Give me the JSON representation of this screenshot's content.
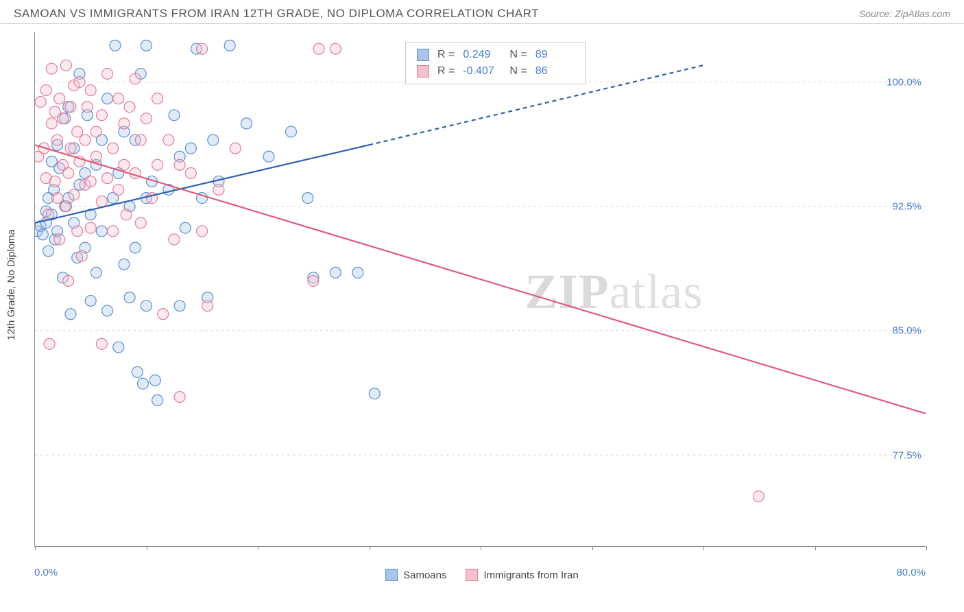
{
  "header": {
    "title": "SAMOAN VS IMMIGRANTS FROM IRAN 12TH GRADE, NO DIPLOMA CORRELATION CHART",
    "source": "Source: ZipAtlas.com"
  },
  "chart": {
    "type": "scatter",
    "ylabel": "12th Grade, No Diploma",
    "xlim": [
      0,
      80
    ],
    "ylim": [
      72,
      103
    ],
    "background_color": "#ffffff",
    "grid_color": "#d8d8d8",
    "grid_dash": "4,4",
    "xticks": [
      0,
      10,
      20,
      30,
      40,
      50,
      60,
      70,
      80
    ],
    "xtick_labels": {
      "left": "0.0%",
      "right": "80.0%"
    },
    "yticks": [
      77.5,
      85.0,
      92.5,
      100.0
    ],
    "ytick_labels": [
      "77.5%",
      "85.0%",
      "92.5%",
      "100.0%"
    ],
    "axis_color": "#888888",
    "tick_label_color": "#4a7ec9",
    "marker_radius": 8,
    "marker_stroke_width": 1.2,
    "marker_fill_opacity": 0.35,
    "series": [
      {
        "name": "Samoans",
        "color_fill": "#a9c6ea",
        "color_stroke": "#5b8fd1",
        "line_color": "#2f5fb0",
        "line_width": 2.2,
        "regression": {
          "x1": 0,
          "y1": 91.5,
          "x2": 30,
          "y2": 96.2,
          "x2_dashed": 60,
          "y2_dashed": 101.0
        },
        "stats": {
          "R": "0.249",
          "N": "89"
        },
        "points": [
          [
            0.2,
            91.0
          ],
          [
            0.5,
            91.3
          ],
          [
            0.7,
            90.8
          ],
          [
            1.0,
            91.5
          ],
          [
            1.0,
            92.2
          ],
          [
            1.2,
            93.0
          ],
          [
            1.2,
            89.8
          ],
          [
            1.5,
            92.0
          ],
          [
            1.5,
            95.2
          ],
          [
            1.7,
            93.5
          ],
          [
            1.8,
            90.5
          ],
          [
            2.0,
            96.2
          ],
          [
            2.0,
            91.0
          ],
          [
            2.2,
            94.8
          ],
          [
            2.5,
            88.2
          ],
          [
            2.7,
            92.5
          ],
          [
            2.7,
            97.8
          ],
          [
            3.0,
            93.0
          ],
          [
            3.0,
            98.5
          ],
          [
            3.2,
            86.0
          ],
          [
            3.5,
            91.5
          ],
          [
            3.5,
            96.0
          ],
          [
            3.8,
            89.4
          ],
          [
            4.0,
            93.8
          ],
          [
            4.0,
            100.5
          ],
          [
            4.5,
            94.5
          ],
          [
            4.5,
            90.0
          ],
          [
            4.7,
            98.0
          ],
          [
            5.0,
            92.0
          ],
          [
            5.0,
            86.8
          ],
          [
            5.5,
            95.0
          ],
          [
            5.5,
            88.5
          ],
          [
            6.0,
            96.5
          ],
          [
            6.0,
            91.0
          ],
          [
            6.5,
            99.0
          ],
          [
            6.5,
            86.2
          ],
          [
            7.0,
            93.0
          ],
          [
            7.2,
            102.2
          ],
          [
            7.5,
            94.5
          ],
          [
            7.5,
            84.0
          ],
          [
            8.0,
            97.0
          ],
          [
            8.0,
            89.0
          ],
          [
            8.5,
            92.5
          ],
          [
            8.5,
            87.0
          ],
          [
            9.0,
            90.0
          ],
          [
            9.0,
            96.5
          ],
          [
            9.2,
            82.5
          ],
          [
            9.5,
            100.5
          ],
          [
            9.7,
            81.8
          ],
          [
            10.0,
            93.0
          ],
          [
            10.0,
            86.5
          ],
          [
            10.0,
            102.2
          ],
          [
            10.5,
            94.0
          ],
          [
            10.8,
            82.0
          ],
          [
            11.0,
            80.8
          ],
          [
            12.0,
            93.5
          ],
          [
            12.5,
            98.0
          ],
          [
            13.0,
            95.5
          ],
          [
            13.0,
            86.5
          ],
          [
            13.5,
            91.2
          ],
          [
            14.0,
            96.0
          ],
          [
            14.5,
            102.0
          ],
          [
            15.0,
            93.0
          ],
          [
            15.5,
            87.0
          ],
          [
            16.0,
            96.5
          ],
          [
            16.5,
            94.0
          ],
          [
            17.5,
            102.2
          ],
          [
            19.0,
            97.5
          ],
          [
            21.0,
            95.5
          ],
          [
            23.0,
            97.0
          ],
          [
            24.5,
            93.0
          ],
          [
            25.0,
            88.2
          ],
          [
            27.0,
            88.5
          ],
          [
            29.0,
            88.5
          ],
          [
            30.5,
            81.2
          ]
        ]
      },
      {
        "name": "Immigants from Iran",
        "display_name": "Immigrants from Iran",
        "color_fill": "#f4c1cc",
        "color_stroke": "#e37c98",
        "line_color": "#e05a7c",
        "line_width": 2.2,
        "regression": {
          "x1": 0,
          "y1": 96.2,
          "x2": 80,
          "y2": 80.0
        },
        "stats": {
          "R": "-0.407",
          "N": "86"
        },
        "points": [
          [
            0.3,
            95.5
          ],
          [
            0.5,
            98.8
          ],
          [
            0.8,
            96.0
          ],
          [
            1.0,
            94.2
          ],
          [
            1.0,
            99.5
          ],
          [
            1.2,
            92.0
          ],
          [
            1.3,
            84.2
          ],
          [
            1.5,
            97.5
          ],
          [
            1.5,
            100.8
          ],
          [
            1.8,
            94.0
          ],
          [
            1.8,
            98.2
          ],
          [
            2.0,
            96.5
          ],
          [
            2.0,
            93.0
          ],
          [
            2.2,
            99.0
          ],
          [
            2.2,
            90.5
          ],
          [
            2.5,
            97.8
          ],
          [
            2.5,
            95.0
          ],
          [
            2.8,
            92.5
          ],
          [
            2.8,
            101.0
          ],
          [
            3.0,
            94.5
          ],
          [
            3.0,
            88.0
          ],
          [
            3.2,
            98.5
          ],
          [
            3.2,
            96.0
          ],
          [
            3.5,
            99.8
          ],
          [
            3.5,
            93.2
          ],
          [
            3.8,
            91.0
          ],
          [
            3.8,
            97.0
          ],
          [
            4.0,
            95.2
          ],
          [
            4.0,
            100.0
          ],
          [
            4.2,
            89.5
          ],
          [
            4.5,
            96.5
          ],
          [
            4.5,
            93.8
          ],
          [
            4.7,
            98.5
          ],
          [
            5.0,
            94.0
          ],
          [
            5.0,
            99.5
          ],
          [
            5.0,
            91.2
          ],
          [
            5.5,
            97.0
          ],
          [
            5.5,
            95.5
          ],
          [
            6.0,
            92.8
          ],
          [
            6.0,
            98.0
          ],
          [
            6.0,
            84.2
          ],
          [
            6.5,
            100.5
          ],
          [
            6.5,
            94.2
          ],
          [
            7.0,
            96.0
          ],
          [
            7.0,
            91.0
          ],
          [
            7.5,
            99.0
          ],
          [
            7.5,
            93.5
          ],
          [
            8.0,
            95.0
          ],
          [
            8.0,
            97.5
          ],
          [
            8.2,
            92.0
          ],
          [
            8.5,
            98.5
          ],
          [
            9.0,
            94.5
          ],
          [
            9.0,
            100.2
          ],
          [
            9.5,
            96.5
          ],
          [
            9.5,
            91.5
          ],
          [
            10.0,
            97.8
          ],
          [
            10.5,
            93.0
          ],
          [
            11.0,
            99.0
          ],
          [
            11.0,
            95.0
          ],
          [
            11.5,
            86.0
          ],
          [
            12.0,
            96.5
          ],
          [
            12.5,
            90.5
          ],
          [
            13.0,
            95.0
          ],
          [
            13.0,
            81.0
          ],
          [
            14.0,
            94.5
          ],
          [
            15.0,
            102.0
          ],
          [
            15.0,
            91.0
          ],
          [
            15.5,
            86.5
          ],
          [
            16.5,
            93.5
          ],
          [
            18.0,
            96.0
          ],
          [
            25.0,
            88.0
          ],
          [
            25.5,
            102.0
          ],
          [
            27.0,
            102.0
          ],
          [
            65.0,
            75.0
          ]
        ]
      }
    ],
    "legend_bottom": [
      {
        "label": "Samoans",
        "fill": "#a9c6ea",
        "stroke": "#5b8fd1"
      },
      {
        "label": "Immigrants from Iran",
        "fill": "#f4c1cc",
        "stroke": "#e37c98"
      }
    ],
    "watermark": {
      "bold": "ZIP",
      "rest": "atlas"
    }
  }
}
